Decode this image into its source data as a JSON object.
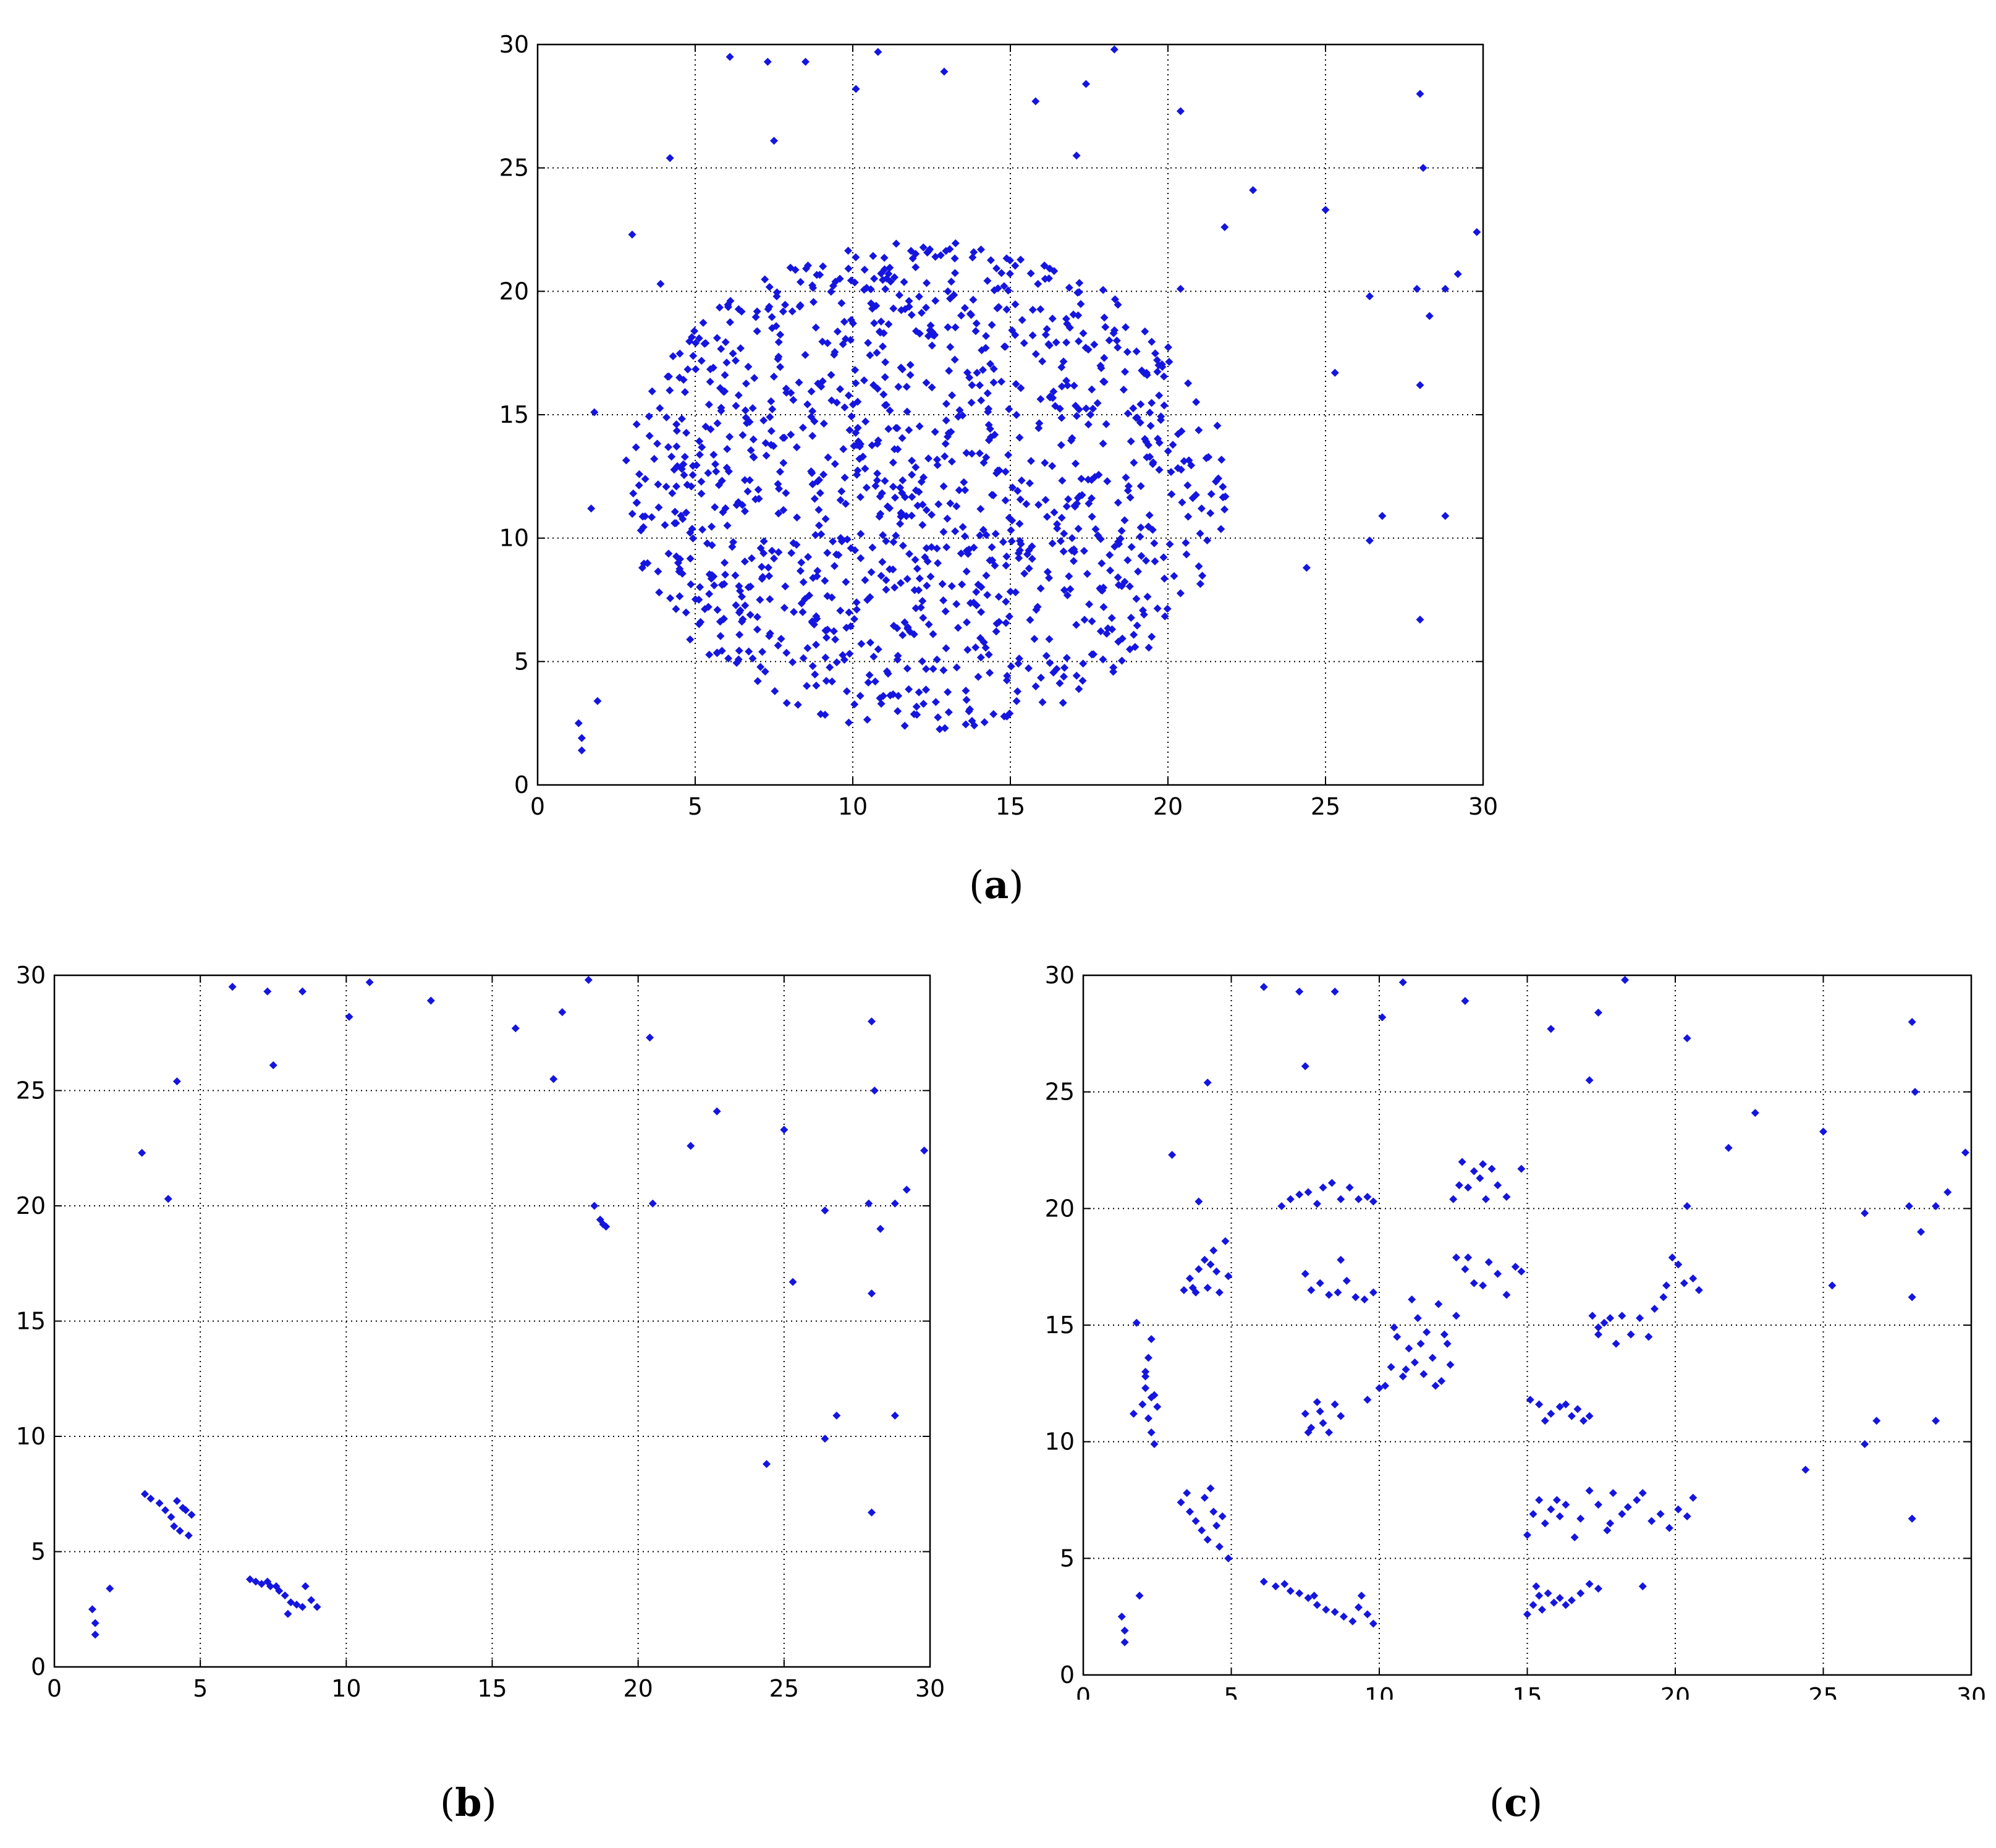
{
  "colors": {
    "marker": "#1515e0",
    "axis": "#000000",
    "grid": "#000000",
    "background": "#ffffff"
  },
  "chart_data": [
    {
      "id": "a",
      "panel_label": "a",
      "type": "scatter",
      "title": "",
      "xlabel": "",
      "ylabel": "",
      "xlim": [
        0,
        30
      ],
      "ylim": [
        0,
        30
      ],
      "xticks": [
        0,
        5,
        10,
        15,
        20,
        25,
        30
      ],
      "yticks": [
        0,
        5,
        10,
        15,
        20,
        25,
        30
      ],
      "grid": true,
      "legend": "none",
      "dense_region": {
        "shape": "ellipse",
        "center": [
          12.3,
          12.1
        ],
        "radii": [
          9.6,
          9.9
        ],
        "approx_points": 1200,
        "note": "dense uniform scatter of points filling the disk"
      },
      "points": [
        [
          1.3,
          2.5
        ],
        [
          1.4,
          1.9
        ],
        [
          1.4,
          1.4
        ],
        [
          1.9,
          3.4
        ],
        [
          1.7,
          11.2
        ],
        [
          1.8,
          15.1
        ],
        [
          3.0,
          22.3
        ],
        [
          3.9,
          20.3
        ],
        [
          4.2,
          25.4
        ],
        [
          6.1,
          29.5
        ],
        [
          7.3,
          29.3
        ],
        [
          7.5,
          26.1
        ],
        [
          8.5,
          29.3
        ],
        [
          10.1,
          28.2
        ],
        [
          10.8,
          29.7
        ],
        [
          12.9,
          28.9
        ],
        [
          15.8,
          27.7
        ],
        [
          17.1,
          25.5
        ],
        [
          17.4,
          28.4
        ],
        [
          18.3,
          29.8
        ],
        [
          20.4,
          27.3
        ],
        [
          21.8,
          22.6
        ],
        [
          22.7,
          24.1
        ],
        [
          25.0,
          23.3
        ],
        [
          20.4,
          20.1
        ],
        [
          24.4,
          8.8
        ],
        [
          25.3,
          16.7
        ],
        [
          26.4,
          19.8
        ],
        [
          26.4,
          9.9
        ],
        [
          26.8,
          10.9
        ],
        [
          28.0,
          28.0
        ],
        [
          28.1,
          25.0
        ],
        [
          27.9,
          20.1
        ],
        [
          28.3,
          19.0
        ],
        [
          28.8,
          20.1
        ],
        [
          29.2,
          20.7
        ],
        [
          29.8,
          22.4
        ],
        [
          28.0,
          16.2
        ],
        [
          28.8,
          10.9
        ],
        [
          28.0,
          6.7
        ]
      ]
    },
    {
      "id": "b",
      "panel_label": "b",
      "type": "scatter",
      "title": "",
      "xlabel": "",
      "ylabel": "",
      "xlim": [
        0,
        30
      ],
      "ylim": [
        0,
        30
      ],
      "xticks": [
        0,
        5,
        10,
        15,
        20,
        25,
        30
      ],
      "yticks": [
        0,
        5,
        10,
        15,
        20,
        25,
        30
      ],
      "grid": true,
      "legend": "none",
      "points": [
        [
          1.3,
          2.5
        ],
        [
          1.4,
          1.9
        ],
        [
          1.4,
          1.4
        ],
        [
          1.9,
          3.4
        ],
        [
          3.0,
          22.3
        ],
        [
          3.9,
          20.3
        ],
        [
          4.2,
          25.4
        ],
        [
          6.1,
          29.5
        ],
        [
          7.3,
          29.3
        ],
        [
          7.5,
          26.1
        ],
        [
          8.5,
          29.3
        ],
        [
          10.1,
          28.2
        ],
        [
          10.8,
          29.7
        ],
        [
          12.9,
          28.9
        ],
        [
          15.8,
          27.7
        ],
        [
          17.1,
          25.5
        ],
        [
          17.4,
          28.4
        ],
        [
          18.3,
          29.8
        ],
        [
          18.5,
          20.0
        ],
        [
          18.7,
          19.4
        ],
        [
          18.8,
          19.2
        ],
        [
          18.9,
          19.1
        ],
        [
          20.4,
          27.3
        ],
        [
          20.5,
          20.1
        ],
        [
          21.8,
          22.6
        ],
        [
          22.7,
          24.1
        ],
        [
          25.0,
          23.3
        ],
        [
          25.3,
          16.7
        ],
        [
          24.4,
          8.8
        ],
        [
          26.4,
          19.8
        ],
        [
          26.4,
          9.9
        ],
        [
          26.8,
          10.9
        ],
        [
          28.0,
          28.0
        ],
        [
          28.1,
          25.0
        ],
        [
          27.9,
          20.1
        ],
        [
          28.3,
          19.0
        ],
        [
          28.8,
          20.1
        ],
        [
          29.2,
          20.7
        ],
        [
          29.8,
          22.4
        ],
        [
          28.0,
          16.2
        ],
        [
          28.8,
          10.9
        ],
        [
          28.0,
          6.7
        ],
        [
          3.1,
          7.5
        ],
        [
          3.3,
          7.3
        ],
        [
          3.6,
          7.1
        ],
        [
          3.8,
          6.8
        ],
        [
          4.0,
          6.5
        ],
        [
          4.1,
          6.1
        ],
        [
          4.2,
          7.2
        ],
        [
          4.3,
          5.9
        ],
        [
          4.4,
          6.9
        ],
        [
          4.5,
          6.8
        ],
        [
          4.6,
          5.7
        ],
        [
          4.7,
          6.6
        ],
        [
          6.7,
          3.8
        ],
        [
          6.9,
          3.7
        ],
        [
          7.1,
          3.6
        ],
        [
          7.3,
          3.7
        ],
        [
          7.4,
          3.5
        ],
        [
          7.6,
          3.5
        ],
        [
          7.7,
          3.3
        ],
        [
          7.9,
          3.1
        ],
        [
          8.0,
          2.3
        ],
        [
          8.1,
          2.8
        ],
        [
          8.3,
          2.7
        ],
        [
          8.5,
          2.6
        ],
        [
          8.6,
          3.5
        ],
        [
          8.8,
          2.9
        ],
        [
          9.0,
          2.6
        ]
      ]
    },
    {
      "id": "c",
      "panel_label": "c",
      "type": "scatter",
      "title": "",
      "xlabel": "",
      "ylabel": "",
      "xlim": [
        0,
        30
      ],
      "ylim": [
        0,
        30
      ],
      "xticks": [
        0,
        5,
        10,
        15,
        20,
        25,
        30
      ],
      "yticks": [
        0,
        5,
        10,
        15,
        20,
        25,
        30
      ],
      "grid": true,
      "legend": "none",
      "points": [
        [
          1.3,
          2.5
        ],
        [
          1.4,
          1.9
        ],
        [
          1.4,
          1.4
        ],
        [
          1.9,
          3.4
        ],
        [
          1.7,
          11.2
        ],
        [
          1.8,
          15.1
        ],
        [
          3.0,
          22.3
        ],
        [
          3.9,
          20.3
        ],
        [
          4.2,
          25.4
        ],
        [
          6.1,
          29.5
        ],
        [
          7.3,
          29.3
        ],
        [
          7.5,
          26.1
        ],
        [
          8.5,
          29.3
        ],
        [
          10.1,
          28.2
        ],
        [
          10.8,
          29.7
        ],
        [
          12.9,
          28.9
        ],
        [
          15.8,
          27.7
        ],
        [
          17.1,
          25.5
        ],
        [
          17.4,
          28.4
        ],
        [
          18.3,
          29.8
        ],
        [
          20.4,
          27.3
        ],
        [
          20.4,
          20.1
        ],
        [
          21.8,
          22.6
        ],
        [
          22.7,
          24.1
        ],
        [
          25.0,
          23.3
        ],
        [
          24.4,
          8.8
        ],
        [
          25.3,
          16.7
        ],
        [
          26.4,
          19.8
        ],
        [
          26.4,
          9.9
        ],
        [
          26.8,
          10.9
        ],
        [
          28.0,
          28.0
        ],
        [
          28.1,
          25.0
        ],
        [
          27.9,
          20.1
        ],
        [
          28.3,
          19.0
        ],
        [
          28.8,
          20.1
        ],
        [
          29.2,
          20.7
        ],
        [
          29.8,
          22.4
        ],
        [
          28.0,
          16.2
        ],
        [
          28.8,
          10.9
        ],
        [
          28.0,
          6.7
        ],
        [
          2.0,
          11.6
        ],
        [
          2.1,
          12.3
        ],
        [
          2.1,
          13.0
        ],
        [
          2.2,
          11.0
        ],
        [
          2.2,
          13.6
        ],
        [
          2.3,
          10.4
        ],
        [
          2.3,
          14.4
        ],
        [
          2.4,
          12.0
        ],
        [
          2.4,
          9.9
        ],
        [
          2.5,
          11.5
        ],
        [
          2.1,
          12.8
        ],
        [
          2.3,
          11.9
        ],
        [
          3.4,
          16.5
        ],
        [
          3.6,
          17.0
        ],
        [
          3.8,
          16.4
        ],
        [
          3.9,
          17.4
        ],
        [
          4.1,
          17.8
        ],
        [
          4.2,
          16.6
        ],
        [
          4.4,
          18.2
        ],
        [
          4.5,
          17.3
        ],
        [
          4.6,
          16.4
        ],
        [
          4.8,
          18.6
        ],
        [
          4.9,
          17.1
        ],
        [
          4.3,
          17.6
        ],
        [
          3.7,
          16.6
        ],
        [
          3.3,
          7.4
        ],
        [
          3.5,
          7.8
        ],
        [
          3.6,
          7.0
        ],
        [
          3.8,
          6.6
        ],
        [
          4.0,
          6.2
        ],
        [
          4.1,
          7.6
        ],
        [
          4.2,
          5.8
        ],
        [
          4.3,
          8.0
        ],
        [
          4.4,
          7.0
        ],
        [
          4.6,
          5.5
        ],
        [
          4.7,
          6.8
        ],
        [
          4.9,
          5.0
        ],
        [
          4.5,
          6.4
        ],
        [
          6.1,
          4.0
        ],
        [
          6.5,
          3.8
        ],
        [
          6.8,
          3.9
        ],
        [
          7.0,
          3.6
        ],
        [
          7.3,
          3.5
        ],
        [
          7.6,
          3.3
        ],
        [
          7.9,
          3.0
        ],
        [
          8.2,
          2.8
        ],
        [
          8.5,
          2.7
        ],
        [
          8.8,
          2.5
        ],
        [
          9.1,
          2.3
        ],
        [
          9.4,
          3.4
        ],
        [
          9.6,
          2.6
        ],
        [
          9.8,
          2.2
        ],
        [
          9.3,
          2.9
        ],
        [
          7.8,
          3.4
        ],
        [
          6.7,
          20.1
        ],
        [
          7.0,
          20.4
        ],
        [
          7.3,
          20.6
        ],
        [
          7.6,
          20.7
        ],
        [
          7.9,
          20.2
        ],
        [
          8.1,
          20.9
        ],
        [
          8.4,
          21.1
        ],
        [
          8.7,
          20.4
        ],
        [
          9.0,
          20.9
        ],
        [
          9.3,
          20.4
        ],
        [
          9.6,
          20.5
        ],
        [
          9.8,
          20.3
        ],
        [
          7.5,
          17.2
        ],
        [
          7.7,
          16.5
        ],
        [
          8.0,
          16.8
        ],
        [
          8.3,
          16.3
        ],
        [
          8.7,
          17.8
        ],
        [
          8.9,
          16.9
        ],
        [
          9.2,
          16.2
        ],
        [
          9.5,
          16.1
        ],
        [
          9.8,
          16.4
        ],
        [
          8.6,
          16.4
        ],
        [
          7.5,
          11.2
        ],
        [
          7.7,
          10.6
        ],
        [
          7.9,
          11.7
        ],
        [
          8.1,
          10.8
        ],
        [
          8.3,
          10.4
        ],
        [
          8.5,
          11.6
        ],
        [
          8.7,
          11.1
        ],
        [
          7.6,
          10.4
        ],
        [
          8.0,
          11.3
        ],
        [
          10.2,
          12.4
        ],
        [
          10.4,
          13.2
        ],
        [
          10.6,
          14.5
        ],
        [
          10.8,
          12.8
        ],
        [
          11.0,
          14.0
        ],
        [
          11.2,
          13.4
        ],
        [
          11.3,
          15.3
        ],
        [
          11.5,
          12.9
        ],
        [
          11.6,
          14.7
        ],
        [
          11.8,
          13.6
        ],
        [
          12.0,
          15.9
        ],
        [
          12.1,
          12.6
        ],
        [
          12.3,
          14.2
        ],
        [
          12.4,
          13.3
        ],
        [
          12.6,
          15.4
        ],
        [
          10.5,
          14.9
        ],
        [
          11.1,
          16.1
        ],
        [
          11.9,
          12.4
        ],
        [
          10.9,
          13.1
        ],
        [
          12.2,
          14.6
        ],
        [
          11.4,
          14.2
        ],
        [
          9.6,
          11.8
        ],
        [
          10.0,
          12.3
        ],
        [
          12.5,
          20.4
        ],
        [
          12.7,
          21.0
        ],
        [
          12.8,
          22.0
        ],
        [
          13.0,
          20.9
        ],
        [
          13.2,
          21.6
        ],
        [
          13.4,
          21.3
        ],
        [
          13.6,
          20.4
        ],
        [
          13.8,
          21.7
        ],
        [
          14.0,
          21.0
        ],
        [
          14.3,
          20.5
        ],
        [
          14.8,
          21.7
        ],
        [
          13.5,
          21.9
        ],
        [
          12.6,
          17.9
        ],
        [
          12.9,
          17.4
        ],
        [
          13.2,
          16.8
        ],
        [
          13.5,
          16.7
        ],
        [
          13.7,
          17.7
        ],
        [
          14.0,
          17.2
        ],
        [
          14.3,
          16.3
        ],
        [
          14.6,
          17.5
        ],
        [
          14.8,
          17.3
        ],
        [
          13.0,
          17.9
        ],
        [
          15.1,
          11.8
        ],
        [
          15.4,
          11.6
        ],
        [
          15.6,
          10.9
        ],
        [
          15.8,
          11.2
        ],
        [
          16.3,
          11.6
        ],
        [
          16.5,
          11.1
        ],
        [
          16.7,
          11.4
        ],
        [
          16.9,
          10.9
        ],
        [
          17.1,
          11.1
        ],
        [
          16.1,
          11.5
        ],
        [
          17.2,
          15.4
        ],
        [
          17.4,
          14.9
        ],
        [
          17.6,
          15.1
        ],
        [
          17.8,
          15.3
        ],
        [
          18.0,
          14.2
        ],
        [
          18.2,
          15.4
        ],
        [
          18.5,
          14.6
        ],
        [
          18.8,
          15.3
        ],
        [
          19.1,
          14.5
        ],
        [
          19.3,
          15.7
        ],
        [
          19.6,
          16.2
        ],
        [
          19.9,
          17.9
        ],
        [
          20.1,
          17.6
        ],
        [
          20.3,
          16.8
        ],
        [
          20.6,
          17.0
        ],
        [
          20.8,
          16.5
        ],
        [
          17.4,
          14.6
        ],
        [
          19.7,
          16.7
        ],
        [
          15.0,
          6.0
        ],
        [
          15.2,
          6.9
        ],
        [
          15.4,
          7.5
        ],
        [
          15.6,
          6.5
        ],
        [
          15.8,
          7.1
        ],
        [
          16.1,
          6.8
        ],
        [
          16.3,
          7.3
        ],
        [
          16.6,
          5.9
        ],
        [
          16.8,
          6.7
        ],
        [
          17.1,
          7.9
        ],
        [
          17.4,
          7.3
        ],
        [
          17.7,
          6.2
        ],
        [
          17.9,
          7.8
        ],
        [
          18.2,
          6.9
        ],
        [
          18.4,
          7.2
        ],
        [
          18.7,
          7.5
        ],
        [
          18.9,
          7.8
        ],
        [
          19.2,
          6.6
        ],
        [
          19.5,
          6.9
        ],
        [
          19.8,
          6.3
        ],
        [
          20.1,
          7.1
        ],
        [
          20.4,
          6.8
        ],
        [
          20.6,
          7.6
        ],
        [
          16.0,
          7.5
        ],
        [
          17.8,
          6.5
        ],
        [
          15.0,
          2.6
        ],
        [
          15.2,
          3.0
        ],
        [
          15.3,
          3.8
        ],
        [
          15.5,
          2.8
        ],
        [
          15.7,
          3.5
        ],
        [
          15.9,
          3.1
        ],
        [
          16.1,
          3.3
        ],
        [
          16.3,
          3.0
        ],
        [
          16.5,
          3.2
        ],
        [
          16.8,
          3.5
        ],
        [
          17.1,
          3.9
        ],
        [
          17.4,
          3.7
        ],
        [
          15.4,
          3.4
        ],
        [
          18.9,
          3.8
        ]
      ]
    }
  ]
}
